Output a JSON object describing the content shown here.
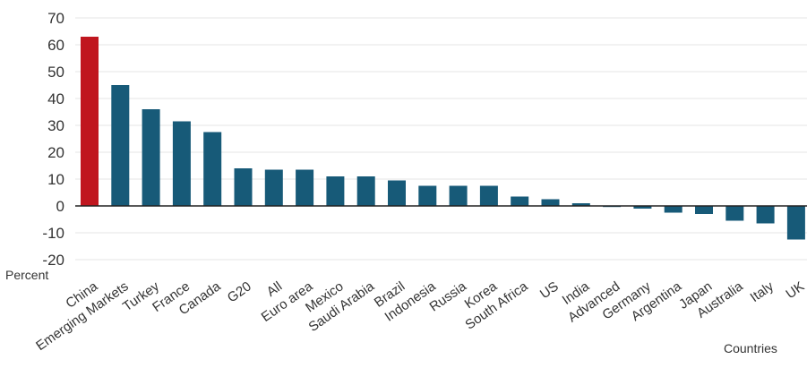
{
  "chart_data": {
    "type": "bar",
    "title": "",
    "xlabel": "Countries",
    "ylabel": "Percent",
    "ylim": [
      -20,
      70
    ],
    "yticks": [
      70,
      60,
      50,
      40,
      30,
      20,
      10,
      0,
      -10,
      -20
    ],
    "grid": true,
    "categories": [
      "China",
      "Emerging Markets",
      "Turkey",
      "France",
      "Canada",
      "G20",
      "All",
      "Euro area",
      "Mexico",
      "Saudi Arabia",
      "Brazil",
      "Indonesia",
      "Russia",
      "Korea",
      "South Africa",
      "US",
      "India",
      "Advanced",
      "Germany",
      "Argentina",
      "Japan",
      "Australia",
      "Italy",
      "UK"
    ],
    "values": [
      63,
      45,
      36,
      31.5,
      27.5,
      14,
      13.5,
      13.5,
      11,
      11,
      9.5,
      7.5,
      7.5,
      7.5,
      3.5,
      2.5,
      1,
      0,
      -1,
      -2.5,
      -3,
      -5.5,
      -6.5,
      -12.5
    ],
    "colors": {
      "highlight": "#c0161f",
      "default": "#175a78",
      "grid": "#e6e6e6",
      "zero": "#222222"
    },
    "highlight_category": "China"
  }
}
